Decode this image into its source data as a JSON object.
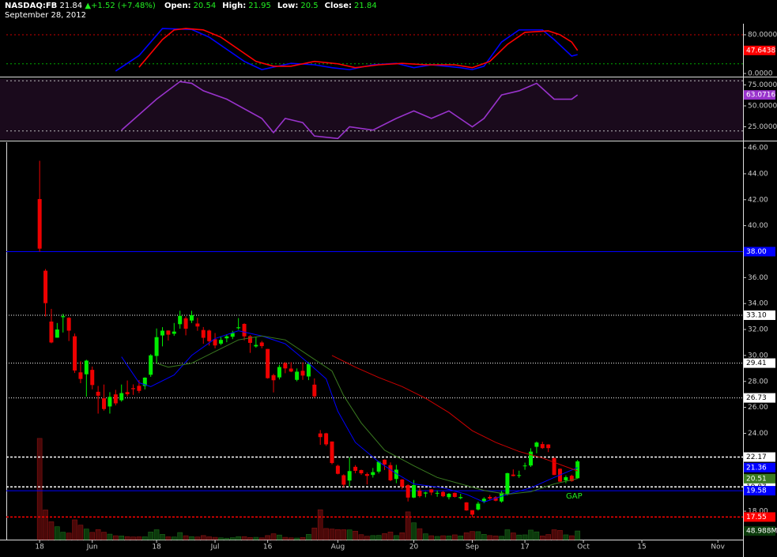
{
  "header": {
    "symbol": "NASDAQ:FB",
    "price": "21.84",
    "change": "+1.52 (+7.48%)",
    "fields": [
      [
        "Open:",
        "20.54"
      ],
      [
        "High:",
        "21.95"
      ],
      [
        "Low:",
        "20.5"
      ],
      [
        "Close:",
        "21.84"
      ]
    ],
    "date": "September 28, 2012"
  },
  "chart_data": [
    {
      "type": "line",
      "ylim": [
        -6.5,
        94.7
      ],
      "yticks": [
        {
          "value": 80,
          "label": "80.0000"
        },
        {
          "value": 0,
          "label": "0.0000"
        }
      ],
      "hlines": [
        {
          "value": 80,
          "color": "#cc0000"
        },
        {
          "value": 20,
          "color": "#00aa00"
        }
      ],
      "series": [
        {
          "color": "#0000ff",
          "badge": false,
          "x": [
            13,
            17,
            21,
            26,
            29,
            32,
            35,
            38,
            43,
            47,
            50,
            53,
            57,
            61,
            64,
            67,
            72,
            74,
            76,
            79,
            82,
            86,
            88,
            91,
            92
          ],
          "values": [
            5,
            37,
            93,
            91,
            75,
            50,
            25,
            8,
            21,
            18,
            12,
            8,
            18,
            21,
            12,
            18,
            12,
            8,
            15,
            65,
            90,
            90,
            70,
            36,
            39
          ]
        },
        {
          "color": "#ff0000",
          "badge": true,
          "x": [
            17,
            21,
            23,
            25,
            28,
            31,
            34,
            37,
            40,
            43,
            47,
            51,
            54,
            58,
            62,
            66,
            71,
            74,
            77,
            80,
            83,
            87,
            89,
            91,
            92
          ],
          "values": [
            13,
            70,
            90,
            93,
            90,
            75,
            50,
            25,
            15,
            15,
            25,
            20,
            12,
            18,
            21,
            18,
            18,
            12,
            25,
            60,
            85,
            88,
            80,
            65,
            47.6438
          ]
        }
      ]
    },
    {
      "type": "line",
      "ylim": [
        9.4,
        82.1
      ],
      "yticks": [
        {
          "value": 75,
          "label": "75.0000"
        },
        {
          "value": 50,
          "label": "50.0000"
        },
        {
          "value": 25,
          "label": "25.0000"
        }
      ],
      "hlines": [
        {
          "value": 80,
          "color": "#bbbbbb"
        },
        {
          "value": 20,
          "color": "#bbbbbb"
        }
      ],
      "series": [
        {
          "color": "#9933cc",
          "badge": true,
          "x": [
            14,
            20,
            24,
            26,
            28,
            32,
            38,
            40,
            42,
            45,
            47,
            51,
            53,
            57,
            61,
            64,
            67,
            70,
            74,
            76,
            79,
            82,
            85,
            88,
            91,
            92
          ],
          "values": [
            21,
            58,
            79,
            77,
            68,
            58,
            35,
            18,
            35,
            30,
            14,
            11,
            25,
            21,
            35,
            44,
            35,
            44,
            25,
            35,
            63,
            68,
            77,
            58,
            58,
            63.0716
          ]
        }
      ]
    },
    {
      "type": "candlestick",
      "ylim": [
        15.81,
        46.43
      ],
      "xlim": [
        -5.7,
        120.3
      ],
      "yticks": [
        {
          "value": 46,
          "label": "46.00"
        },
        {
          "value": 44,
          "label": "44.00"
        },
        {
          "value": 42,
          "label": "42.00"
        },
        {
          "value": 40,
          "label": "40.00"
        },
        {
          "value": 38,
          "label": "38.00"
        },
        {
          "value": 36,
          "label": "36.00"
        },
        {
          "value": 34,
          "label": "34.00"
        },
        {
          "value": 32,
          "label": "32.00"
        },
        {
          "value": 30,
          "label": "30.00"
        },
        {
          "value": 28,
          "label": "28.00"
        },
        {
          "value": 26,
          "label": "26.00"
        },
        {
          "value": 24,
          "label": "24.00"
        },
        {
          "value": 22,
          "label": "22.00"
        },
        {
          "value": 20,
          "label": "20.00"
        },
        {
          "value": 18,
          "label": "18.00"
        }
      ],
      "xticks": [
        {
          "value": 0,
          "label": "18"
        },
        {
          "value": 9,
          "label": "Jun"
        },
        {
          "value": 20,
          "label": "18"
        },
        {
          "value": 30,
          "label": "Jul"
        },
        {
          "value": 39,
          "label": "16"
        },
        {
          "value": 51,
          "label": "Aug"
        },
        {
          "value": 64,
          "label": "20"
        },
        {
          "value": 74,
          "label": "Sep"
        },
        {
          "value": 83,
          "label": "17"
        },
        {
          "value": 93,
          "label": "Oct"
        },
        {
          "value": 103,
          "label": "15"
        },
        {
          "value": 116,
          "label": "Nov"
        }
      ],
      "up_color": "#00ee00",
      "down_color": "#ee0000",
      "annotation": "GAP",
      "x": [
        0,
        1,
        2,
        3,
        4,
        5,
        6,
        7,
        8,
        9,
        10,
        11,
        12,
        13,
        14,
        15,
        16,
        17,
        18,
        19,
        20,
        21,
        22,
        23,
        24,
        25,
        26,
        27,
        28,
        29,
        30,
        31,
        32,
        33,
        34,
        35,
        36,
        37,
        38,
        39,
        40,
        41,
        42,
        43,
        44,
        45,
        46,
        47,
        48,
        49,
        50,
        51,
        52,
        53,
        54,
        55,
        56,
        57,
        58,
        59,
        60,
        61,
        62,
        63,
        64,
        65,
        66,
        67,
        68,
        69,
        70,
        71,
        72,
        73,
        74,
        75,
        76,
        77,
        78,
        79,
        80,
        81,
        82,
        83,
        84,
        85,
        86,
        87,
        88,
        89,
        90,
        91,
        92
      ],
      "open": [
        42.05,
        36.53,
        32.61,
        31.37,
        32.95,
        32.9,
        31.48,
        28.7,
        28.55,
        28.89,
        27.2,
        26.7,
        26.07,
        27.0,
        26.55,
        27.18,
        27.48,
        27.66,
        27.65,
        28.51,
        29.96,
        31.54,
        31.92,
        31.67,
        32.41,
        32.86,
        32.69,
        32.46,
        31.96,
        31.92,
        31.25,
        30.91,
        31.32,
        31.44,
        32.1,
        32.43,
        31.48,
        30.7,
        31.0,
        30.5,
        28.48,
        28.31,
        29.41,
        28.99,
        28.12,
        28.82,
        28.38,
        27.75,
        23.99,
        24.0,
        23.37,
        21.5,
        20.77,
        20.36,
        21.42,
        21.17,
        20.86,
        20.79,
        21.05,
        21.97,
        21.55,
        20.48,
        20.44,
        20.01,
        19.05,
        19.58,
        19.36,
        19.68,
        19.4,
        19.48,
        19.08,
        19.41,
        19.01,
        18.68,
        18.08,
        18.13,
        18.75,
        19.1,
        19.08,
        18.75,
        19.32,
        20.82,
        20.73,
        21.5,
        21.52,
        22.96,
        23.17,
        23.14,
        22.09,
        21.27,
        20.38,
        20.73,
        20.54
      ],
      "high": [
        45.0,
        36.66,
        33.59,
        32.5,
        33.21,
        32.95,
        31.69,
        29.55,
        29.67,
        29.15,
        27.65,
        27.76,
        27.17,
        27.35,
        27.76,
        28.07,
        27.77,
        28.1,
        28.32,
        30.1,
        32.08,
        32.18,
        31.93,
        32.5,
        33.45,
        33.02,
        33.44,
        32.9,
        32.19,
        31.99,
        31.73,
        31.44,
        31.63,
        31.9,
        32.88,
        32.48,
        31.57,
        31.4,
        31.12,
        30.5,
        28.59,
        29.29,
        29.5,
        29.48,
        29.0,
        29.47,
        29.49,
        28.23,
        24.25,
        24.04,
        23.37,
        21.58,
        20.84,
        22.16,
        21.55,
        21.2,
        20.98,
        21.33,
        21.85,
        21.99,
        21.76,
        21.57,
        20.48,
        20.08,
        20.4,
        19.8,
        19.5,
        19.7,
        19.59,
        19.55,
        19.4,
        19.44,
        19.34,
        18.7,
        18.08,
        18.73,
        19.08,
        19.25,
        19.16,
        19.57,
        20.96,
        21.22,
        21.12,
        21.74,
        22.85,
        23.37,
        23.35,
        23.16,
        22.15,
        21.3,
        20.76,
        20.81,
        21.95
      ],
      "low": [
        38.0,
        33.0,
        30.94,
        31.36,
        31.77,
        31.11,
        28.65,
        27.86,
        26.83,
        27.39,
        25.52,
        25.75,
        25.52,
        26.15,
        26.44,
        26.84,
        26.96,
        27.1,
        27.38,
        28.35,
        29.41,
        30.7,
        31.15,
        31.51,
        32.06,
        31.55,
        32.5,
        31.9,
        30.9,
        30.76,
        30.55,
        30.8,
        31.02,
        31.26,
        31.99,
        31.16,
        30.2,
        30.6,
        30.55,
        28.21,
        27.15,
        28.15,
        28.63,
        28.71,
        28.01,
        28.12,
        28.1,
        26.73,
        23.11,
        23.03,
        21.61,
        20.84,
        19.82,
        19.9,
        20.92,
        20.8,
        20.06,
        20.59,
        20.91,
        21.17,
        20.31,
        20.16,
        19.69,
        18.75,
        19.01,
        19.05,
        19.07,
        19.23,
        19.11,
        19.08,
        18.91,
        19.05,
        18.92,
        18.03,
        17.55,
        18.05,
        18.62,
        18.82,
        18.76,
        18.66,
        19.21,
        20.68,
        20.57,
        21.19,
        21.41,
        22.46,
        22.8,
        22.55,
        20.78,
        20.25,
        20.16,
        20.28,
        20.5
      ],
      "close": [
        38.23,
        34.03,
        31.0,
        32.0,
        33.03,
        31.91,
        28.84,
        28.19,
        29.6,
        27.72,
        26.9,
        25.87,
        26.81,
        26.31,
        27.1,
        27.01,
        27.4,
        27.27,
        28.29,
        30.01,
        31.41,
        31.91,
        31.6,
        31.84,
        33.05,
        32.06,
        33.1,
        32.23,
        31.36,
        31.1,
        30.77,
        31.2,
        31.47,
        31.73,
        32.17,
        31.47,
        30.97,
        30.81,
        30.72,
        28.25,
        28.09,
        29.11,
        29.0,
        28.76,
        28.75,
        28.45,
        29.34,
        26.85,
        23.71,
        23.15,
        21.71,
        20.88,
        20.04,
        21.09,
        21.11,
        20.92,
        20.72,
        21.01,
        21.81,
        21.6,
        20.38,
        21.2,
        19.87,
        19.05,
        20.01,
        19.16,
        19.44,
        19.44,
        19.41,
        19.15,
        19.34,
        19.1,
        19.09,
        18.06,
        17.73,
        18.58,
        18.96,
        18.98,
        18.81,
        19.43,
        20.93,
        20.71,
        20.78,
        21.52,
        22.59,
        23.29,
        22.86,
        22.86,
        20.79,
        20.28,
        20.62,
        20.32,
        21.84
      ],
      "levels": [
        {
          "value": 38,
          "label": "38.00",
          "color": "#0000ff",
          "style": "solid"
        },
        {
          "value": 33.1,
          "label": "33.10",
          "color": "#ffffff",
          "style": "dotted"
        },
        {
          "value": 29.41,
          "color": "#ffffff",
          "style": "dotted"
        },
        {
          "value": 26.73,
          "color": "#ffffff",
          "style": "dotted"
        },
        {
          "value": 22.17,
          "color": "#ffffff",
          "style": "dashed"
        },
        {
          "value": 19.87,
          "color": "#ffffff",
          "style": "dashed"
        },
        {
          "value": 19.58,
          "color": "#0000ff",
          "style": "solid"
        },
        {
          "value": 17.55,
          "color": "#ff0000",
          "style": "dashed"
        }
      ],
      "series": [
        {
          "color": "#0000ff",
          "badge": true,
          "x": [
            14,
            17,
            19,
            23,
            26,
            30,
            34,
            38,
            42,
            46,
            49,
            51,
            54,
            58,
            61,
            64,
            69,
            73,
            76,
            80,
            84,
            88,
            92
          ],
          "values": [
            29.9,
            27.9,
            27.6,
            28.5,
            30.0,
            31.3,
            31.9,
            31.5,
            30.9,
            29.4,
            28.2,
            25.7,
            23.3,
            21.8,
            20.9,
            20.1,
            19.8,
            19.3,
            18.7,
            19.3,
            19.8,
            20.6,
            21.36
          ]
        },
        {
          "color": "#3a7a20",
          "badge": true,
          "x": [
            20,
            22,
            26,
            30,
            34,
            38,
            42,
            46,
            50,
            52,
            55,
            59,
            64,
            68,
            72,
            76,
            80,
            84,
            88,
            92
          ],
          "values": [
            29.4,
            29.1,
            29.4,
            30.3,
            31.2,
            31.5,
            31.2,
            30.0,
            28.8,
            26.9,
            24.8,
            22.7,
            21.5,
            20.6,
            20.1,
            19.6,
            19.3,
            19.5,
            20.1,
            20.51
          ]
        },
        {
          "color": "#cc0000",
          "badge": false,
          "x": [
            50,
            54,
            58,
            62,
            66,
            70,
            74,
            78,
            82,
            86,
            92
          ],
          "values": [
            30.0,
            29.1,
            28.3,
            27.6,
            26.7,
            25.6,
            24.2,
            23.3,
            22.6,
            22.1,
            21.1
          ]
        }
      ]
    },
    {
      "type": "bar",
      "ylim": [
        0,
        2250
      ],
      "up_color": "#0b3a0b",
      "down_color": "#4a0808",
      "values": [
        573,
        168,
        101,
        73,
        42,
        37,
        112,
        82,
        60,
        41,
        57,
        42,
        31,
        22,
        21,
        17,
        15,
        16,
        16,
        43,
        56,
        30,
        16,
        15,
        40,
        22,
        17,
        15,
        23,
        16,
        13,
        10,
        8,
        11,
        17,
        17,
        12,
        13,
        10,
        23,
        33,
        26,
        13,
        10,
        9,
        12,
        30,
        66,
        169,
        63,
        60,
        57,
        56,
        55,
        48,
        28,
        19,
        23,
        24,
        34,
        43,
        23,
        39,
        157,
        95,
        62,
        33,
        22,
        18,
        22,
        21,
        27,
        21,
        39,
        46,
        45,
        30,
        23,
        21,
        19,
        56,
        38,
        26,
        27,
        54,
        44,
        21,
        29,
        56,
        52,
        27,
        22,
        48.988
      ],
      "value_labels": [
        null,
        null,
        null,
        null,
        null,
        null,
        null,
        null,
        null,
        null,
        null,
        null,
        null,
        null,
        null,
        null,
        null,
        null,
        null,
        null,
        null,
        null,
        null,
        null,
        null,
        null,
        null,
        null,
        null,
        null,
        null,
        null,
        null,
        null,
        null,
        null,
        null,
        null,
        null,
        null,
        null,
        null,
        null,
        null,
        null,
        null,
        null,
        null,
        null,
        null,
        null,
        null,
        null,
        null,
        null,
        null,
        null,
        null,
        null,
        null,
        null,
        null,
        null,
        null,
        null,
        null,
        null,
        null,
        null,
        null,
        null,
        null,
        null,
        null,
        null,
        null,
        null,
        null,
        null,
        null,
        null,
        null,
        null,
        null,
        null,
        null,
        null,
        null,
        null,
        null,
        null,
        null,
        "48.988M"
      ]
    }
  ]
}
